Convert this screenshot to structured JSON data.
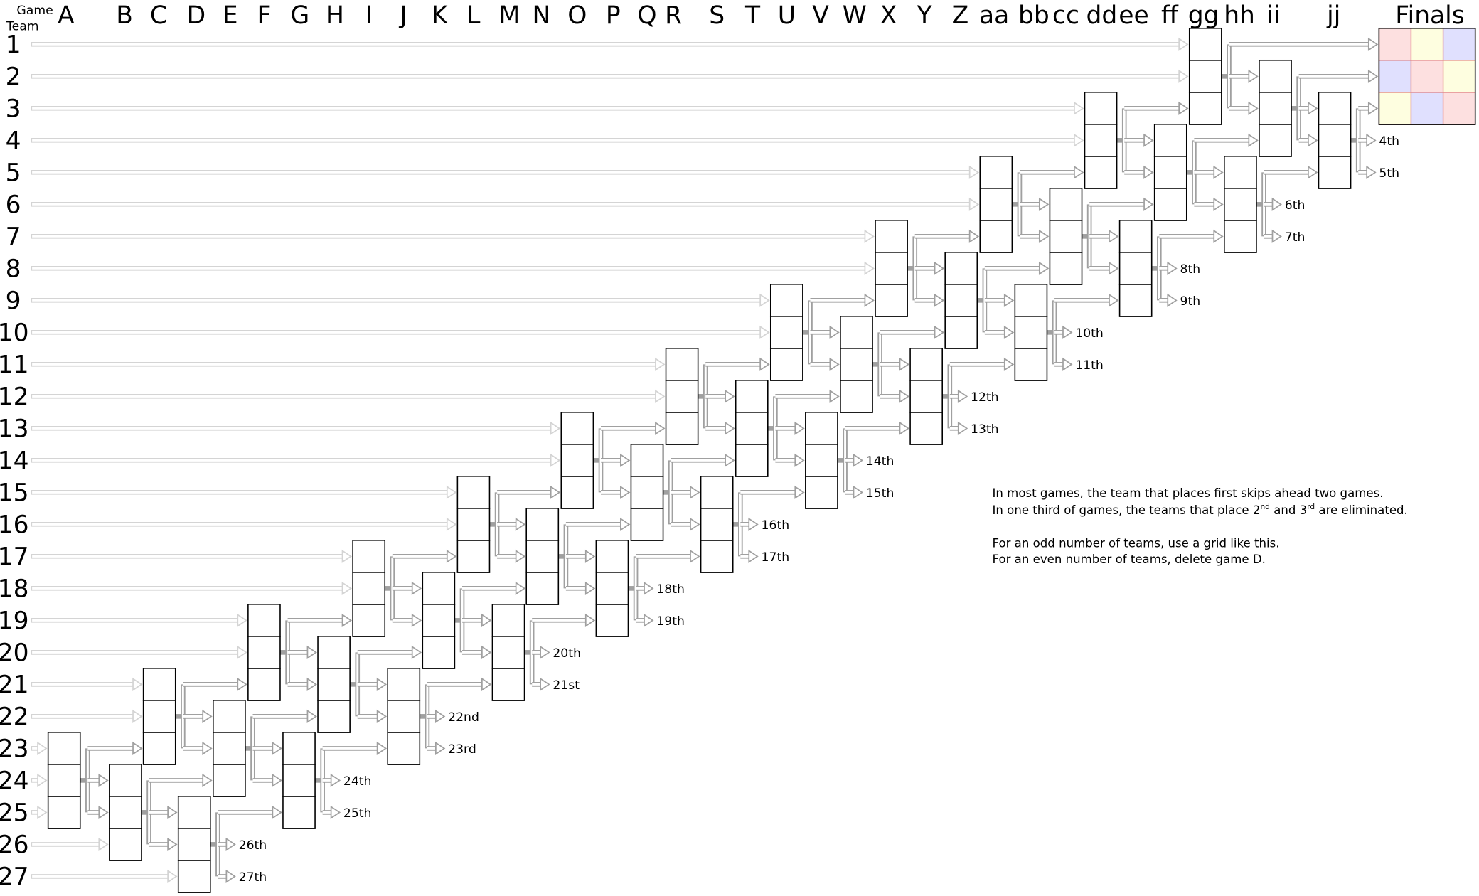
{
  "header": {
    "game": "Game",
    "team": "Team",
    "finals": "Finals"
  },
  "columns": [
    "A",
    "B",
    "C",
    "D",
    "E",
    "F",
    "G",
    "H",
    "I",
    "J",
    "K",
    "L",
    "M",
    "N",
    "O",
    "P",
    "Q",
    "R",
    "S",
    "T",
    "U",
    "V",
    "W",
    "X",
    "Y",
    "Z",
    "aa",
    "bb",
    "cc",
    "dd",
    "ee",
    "ff",
    "gg",
    "hh",
    "ii",
    "jj"
  ],
  "rows": [
    "1",
    "2",
    "3",
    "4",
    "5",
    "6",
    "7",
    "8",
    "9",
    "10",
    "11",
    "12",
    "13",
    "14",
    "15",
    "16",
    "17",
    "18",
    "19",
    "20",
    "21",
    "22",
    "23",
    "24",
    "25",
    "26",
    "27"
  ],
  "places": [
    "4th",
    "5th",
    "6th",
    "7th",
    "8th",
    "9th",
    "10th",
    "11th",
    "12th",
    "13th",
    "14th",
    "15th",
    "16th",
    "17th",
    "18th",
    "19th",
    "20th",
    "21st",
    "22nd",
    "23rd",
    "24th",
    "25th",
    "26th",
    "27th"
  ],
  "notes": {
    "line1": "In most games, the team that places first skips ahead two games.",
    "line2": [
      "In one third of games, the teams that place 2",
      "nd",
      " and 3",
      "rd",
      " are eliminated."
    ],
    "line3": "For an odd number of teams, use a grid like this.",
    "line4": "For an even number of teams, delete game D."
  }
}
